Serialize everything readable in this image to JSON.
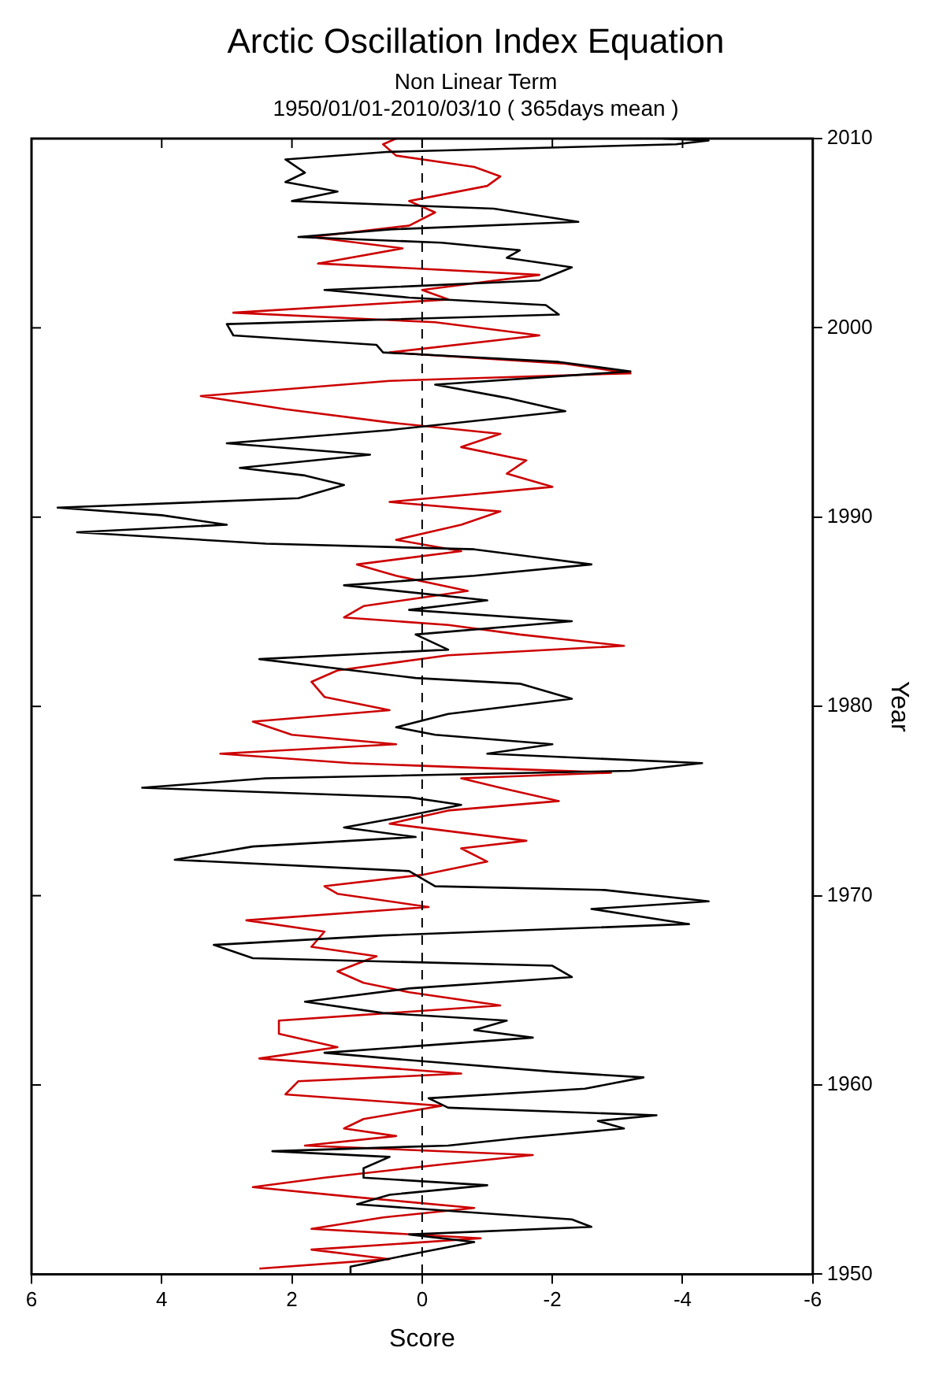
{
  "chart_data": {
    "type": "line",
    "title": "Arctic Oscillation Index Equation",
    "subtitle": "Non Linear Term",
    "annotations": [
      "1950/01/01-2010/03/10 ( 365days mean )"
    ],
    "xlabel": "Score",
    "ylabel": "Year",
    "xlim": [
      6,
      -6
    ],
    "xticks": [
      6,
      4,
      2,
      0,
      -2,
      -4,
      -6
    ],
    "ylim": [
      1950,
      2010
    ],
    "yticks": [
      1950,
      1960,
      1970,
      1980,
      1990,
      2000,
      2010
    ],
    "line_style": "solid",
    "ref_lines": [
      {
        "axis": "x",
        "value": 0,
        "color": "#000000",
        "line_style": "dashed"
      }
    ],
    "series": [
      {
        "color": "#000000",
        "values": [
          1950.0,
          1950.4,
          1951.1,
          1951.7,
          1952.1,
          1952.5,
          1952.9,
          1953.3,
          1953.7,
          1954.2,
          1954.7,
          1955.1,
          1955.6,
          1956.2,
          1956.5,
          1956.8,
          1957.2,
          1957.7,
          1958.1,
          1958.4,
          1958.8,
          1959.3,
          1959.8,
          1960.4,
          1960.7,
          1961.4,
          1961.7,
          1962.5,
          1962.9,
          1963.4,
          1963.8,
          1964.4,
          1965.1,
          1965.7,
          1966.3,
          1966.7,
          1967.4,
          1967.9,
          1968.5,
          1969.3,
          1969.7,
          1970.3,
          1970.5,
          1971.3,
          1971.9,
          1972.6,
          1973.1,
          1973.6,
          1974.1,
          1974.8,
          1975.2,
          1975.7,
          1976.2,
          1976.6,
          1977.0,
          1977.5,
          1978.0,
          1978.5,
          1978.9,
          1979.6,
          1980.4,
          1981.2,
          1981.5,
          1982.5,
          1983.0,
          1983.8,
          1984.5,
          1985.1,
          1985.6,
          1986.4,
          1986.9,
          1987.5,
          1987.9,
          1988.3,
          1988.6,
          1989.2,
          1989.6,
          1990.1,
          1990.5,
          1991.0,
          1991.7,
          1992.2,
          1992.6,
          1993.3,
          1993.9,
          1994.6,
          1995.6,
          1996.3,
          1997.0,
          1997.7,
          1998.2,
          1998.7,
          1999.1,
          1999.6,
          2000.2,
          2000.7,
          2001.2,
          2001.6,
          2002.0,
          2002.5,
          2003.2,
          2003.7,
          2004.1,
          2004.5,
          2004.8,
          2005.2,
          2005.6,
          2006.3,
          2006.7,
          2007.2,
          2007.7,
          2008.2,
          2008.9,
          2009.3,
          2009.7,
          2009.9,
          2010.0
        ],
        "x": [
          1.1,
          1.1,
          0.1,
          -0.8,
          0.2,
          -2.6,
          -2.3,
          -0.6,
          1.0,
          0.5,
          -1.0,
          0.9,
          0.9,
          0.5,
          2.3,
          -0.4,
          -1.5,
          -3.1,
          -2.7,
          -3.6,
          -0.4,
          -0.1,
          -2.5,
          -3.4,
          -2.0,
          0.5,
          1.5,
          -1.7,
          -0.8,
          -1.3,
          0.6,
          1.8,
          0.2,
          -2.3,
          -2.0,
          2.6,
          3.2,
          0.6,
          -4.1,
          -2.6,
          -4.4,
          -2.8,
          -0.2,
          0.2,
          3.8,
          2.6,
          0.1,
          1.2,
          0.4,
          -0.6,
          0.2,
          4.3,
          2.4,
          -3.2,
          -4.3,
          -1.0,
          -2.0,
          -0.2,
          0.4,
          -0.4,
          -2.3,
          -1.5,
          0.1,
          2.5,
          -0.4,
          0.1,
          -2.3,
          0.2,
          -1.0,
          1.2,
          -0.8,
          -2.6,
          -1.7,
          -0.8,
          2.4,
          5.3,
          3.0,
          4.0,
          5.6,
          1.9,
          1.2,
          1.8,
          2.8,
          0.8,
          3.0,
          0.5,
          -2.2,
          -1.3,
          -0.2,
          -3.2,
          -2.1,
          0.6,
          0.7,
          2.9,
          3.0,
          -2.1,
          -1.9,
          0.2,
          1.5,
          -1.8,
          -2.3,
          -1.3,
          -1.5,
          -0.3,
          1.9,
          0.5,
          -2.4,
          -1.1,
          2.0,
          1.3,
          2.1,
          1.8,
          2.1,
          0.5,
          -3.9,
          -4.4,
          -3.7
        ]
      },
      {
        "color": "#cc0000",
        "values": [
          1950.3,
          1950.8,
          1951.3,
          1951.9,
          1952.4,
          1953.0,
          1953.5,
          1954.1,
          1954.6,
          1955.1,
          1955.8,
          1956.3,
          1956.8,
          1957.3,
          1957.7,
          1958.2,
          1958.9,
          1959.5,
          1960.2,
          1960.6,
          1961.4,
          1962.0,
          1962.7,
          1963.4,
          1964.2,
          1964.9,
          1965.4,
          1966.0,
          1966.8,
          1967.3,
          1968.1,
          1968.7,
          1969.4,
          1970.1,
          1970.5,
          1971.1,
          1971.8,
          1972.5,
          1972.9,
          1973.8,
          1974.5,
          1975.0,
          1975.7,
          1976.2,
          1976.5,
          1977.0,
          1977.5,
          1978.0,
          1978.5,
          1979.2,
          1979.8,
          1980.5,
          1981.3,
          1981.9,
          1982.7,
          1983.2,
          1983.8,
          1984.3,
          1984.7,
          1985.3,
          1986.1,
          1986.9,
          1987.5,
          1988.2,
          1988.8,
          1989.6,
          1990.3,
          1990.8,
          1991.6,
          1992.3,
          1993.0,
          1993.7,
          1994.4,
          1995.0,
          1995.7,
          1996.4,
          1997.2,
          1997.6,
          1998.1,
          1998.7,
          1999.6,
          2000.3,
          2000.8,
          2001.5,
          2002.0,
          2002.8,
          2003.4,
          2004.2,
          2004.8,
          2005.4,
          2006.1,
          2006.7,
          2007.5,
          2008.0,
          2008.5,
          2009.1,
          2009.7,
          2010.0
        ],
        "x": [
          2.5,
          0.5,
          1.7,
          -0.9,
          1.7,
          0.6,
          -0.8,
          1.1,
          2.6,
          1.5,
          -0.3,
          -1.7,
          1.8,
          0.4,
          1.2,
          0.9,
          -0.3,
          2.1,
          1.9,
          -0.6,
          2.5,
          1.3,
          2.2,
          2.2,
          -1.2,
          0.2,
          0.9,
          1.3,
          0.7,
          1.7,
          1.5,
          2.7,
          -0.1,
          1.3,
          1.5,
          0.0,
          -1.0,
          -0.6,
          -1.6,
          0.5,
          -0.4,
          -2.1,
          -1.2,
          -0.6,
          -2.9,
          1.1,
          3.1,
          0.4,
          2.0,
          2.6,
          0.5,
          1.5,
          1.7,
          1.3,
          -0.4,
          -3.1,
          -1.5,
          -0.4,
          1.2,
          0.9,
          -0.7,
          0.4,
          1.0,
          -0.6,
          0.4,
          -0.6,
          -1.2,
          0.5,
          -2.0,
          -1.3,
          -1.6,
          -0.6,
          -1.2,
          0.5,
          2.1,
          3.4,
          0.5,
          -3.2,
          -2.2,
          0.5,
          -1.8,
          -0.2,
          2.9,
          -0.4,
          0.0,
          -1.8,
          1.6,
          0.3,
          1.7,
          0.2,
          -0.2,
          0.2,
          -1.0,
          -1.2,
          -0.8,
          0.4,
          0.6,
          0.4
        ]
      }
    ]
  }
}
